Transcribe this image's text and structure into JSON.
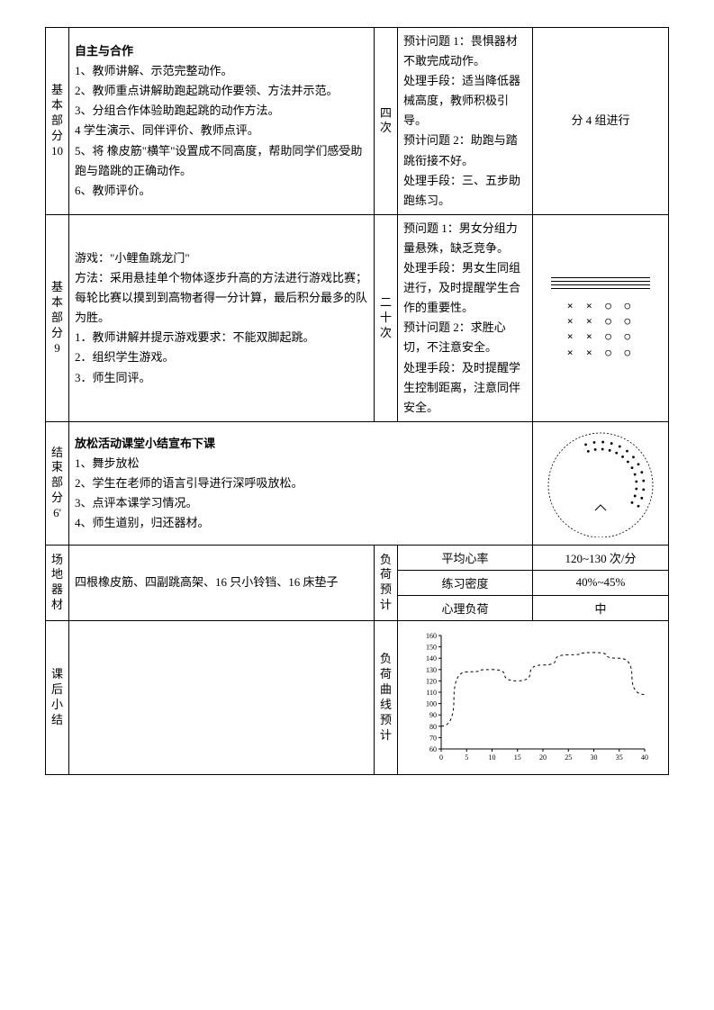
{
  "rows": [
    {
      "label": [
        "基",
        "本",
        "部",
        "分",
        "10"
      ],
      "content_title": "自主与合作",
      "content_lines": [
        "1、教师讲解、示范完整动作。",
        "2、教师重点讲解助跑起跳动作要领、方法并示范。",
        "3、分组合作体验助跑起跳的动作方法。",
        "4 学生演示、同伴评价、教师点评。",
        "5、将 橡皮筋\"横竿\"设置成不同高度，帮助同学们感受助跑与踏跳的正确动作。",
        "6、教师评价。"
      ],
      "mid_label": [
        "四",
        "次"
      ],
      "problems": "预计问题 1：畏惧器材不敢完成动作。\n处理手段：适当降低器械高度，教师积极引导。\n预计问题 2：助跑与踏跳衔接不好。\n处理手段：三、五步助跑练习。",
      "right_text": "分 4 组进行"
    },
    {
      "label": [
        "基",
        "本",
        "部",
        "分",
        "9"
      ],
      "content_lines": [
        "游戏：\"小鲤鱼跳龙门\"",
        "方法：采用悬挂单个物体逐步升高的方法进行游戏比赛；每轮比赛以摸到到高物者得一分计算，最后积分最多的队为胜。",
        "1．教师讲解并提示游戏要求：不能双脚起跳。",
        "2．组织学生游戏。",
        "3．师生同评。"
      ],
      "mid_label": [
        "二",
        "十",
        "次"
      ],
      "problems": "预问题 1：男女分组力量悬殊，缺乏竞争。\n处理手段：男女生同组进行，及时提醒学生合作的重要性。\n预计问题 2：求胜心切，不注意安全。\n处理手段：及时提醒学生控制距离，注意同伴安全。"
    },
    {
      "label": [
        "结",
        "束",
        "部",
        "分",
        "6'"
      ],
      "content_title": "放松活动课堂小结宣布下课",
      "content_lines": [
        "1、舞步放松",
        "2、学生在老师的语言引导进行深呼吸放松。",
        "3、点评本课学习情况。",
        "4、师生道别，归还器材。"
      ]
    }
  ],
  "equipment": {
    "label": [
      "场",
      "地",
      "器",
      "材"
    ],
    "text": "四根橡皮筋、四副跳高架、16 只小铃铛、16 床垫子"
  },
  "load": {
    "label": [
      "负",
      "荷",
      "预",
      "计"
    ],
    "rows": [
      {
        "k": "平均心率",
        "v": "120~130 次/分"
      },
      {
        "k": "练习密度",
        "v": "40%~45%"
      },
      {
        "k": "心理负荷",
        "v": "中"
      }
    ]
  },
  "summary": {
    "label": [
      "课",
      "后",
      "小",
      "结"
    ],
    "chart_label": [
      "负",
      "荷",
      "曲",
      "线",
      "预",
      "计"
    ]
  },
  "chart": {
    "type": "line",
    "x": [
      0,
      5,
      10,
      15,
      20,
      25,
      30,
      35,
      40
    ],
    "y": [
      80,
      128,
      130,
      120,
      134,
      143,
      145,
      140,
      108
    ],
    "ylim": [
      60,
      160
    ],
    "xlim": [
      0,
      40
    ],
    "yticks": [
      60,
      70,
      80,
      90,
      100,
      110,
      120,
      130,
      140,
      150,
      160
    ],
    "xticks": [
      0,
      5,
      10,
      15,
      20,
      25,
      30,
      35,
      40
    ],
    "line_color": "#000000",
    "axis_color": "#000000",
    "dash": "3,3",
    "tick_fontsize": 8,
    "line_width": 1
  },
  "circle_diagram": {
    "outer_radius": 58,
    "inner_dots_radii": [
      48,
      40
    ],
    "dot_count": 20,
    "colors": {
      "stroke": "#000000",
      "fill": "#000000"
    }
  },
  "marks_grid": {
    "rows": [
      "× × ○ ○",
      "× × ○ ○",
      "× × ○ ○",
      "× × ○ ○"
    ]
  }
}
